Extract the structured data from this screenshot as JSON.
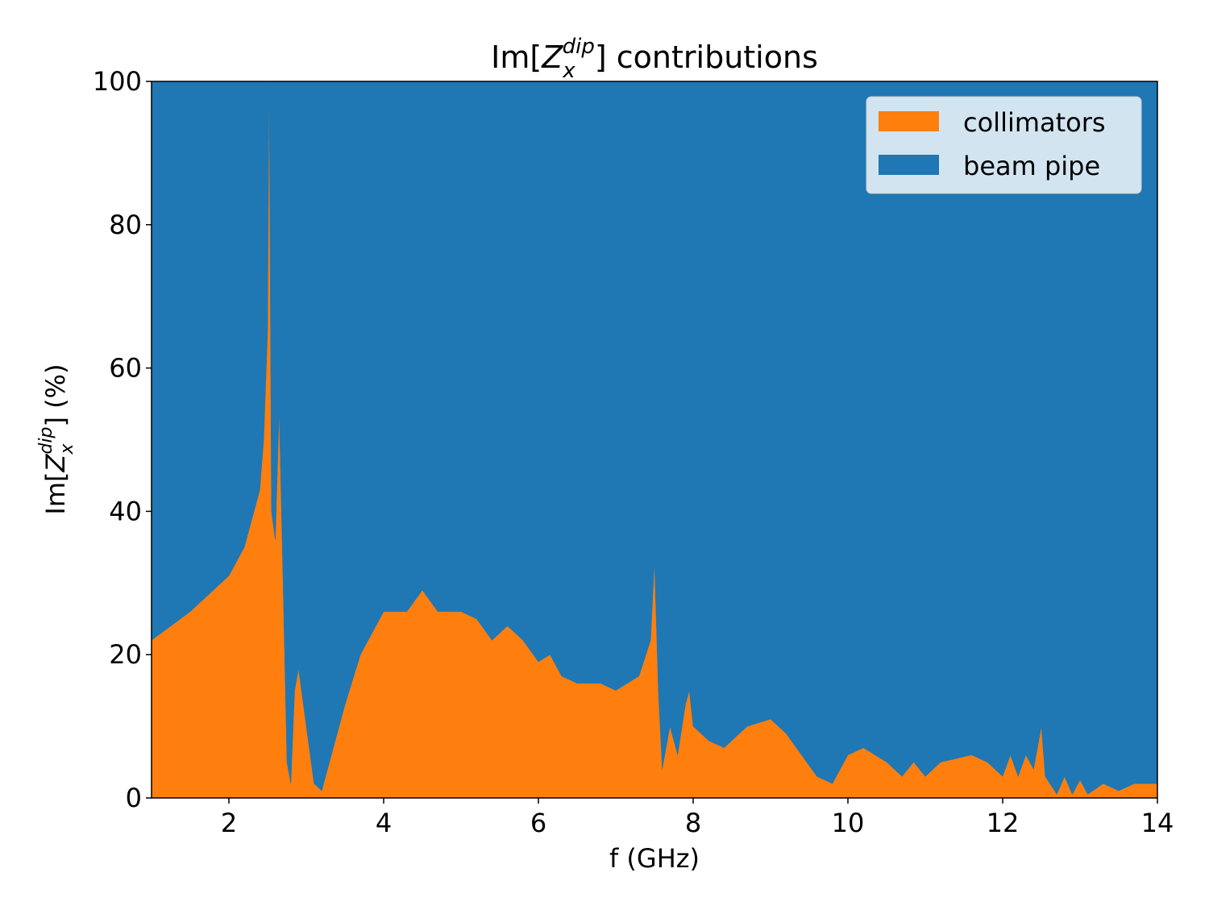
{
  "chart_data": {
    "type": "stacked-area",
    "title": {
      "prefix": "Im[",
      "symbol": "Z",
      "sub": "x",
      "sup": "dip",
      "suffix": "] contributions"
    },
    "x_label": "f (GHz)",
    "y_label": {
      "prefix": "Im[",
      "symbol": "Z",
      "sub": "x",
      "sup": "dip",
      "suffix": "] (%)"
    },
    "x": [
      1.0,
      1.5,
      2.0,
      2.2,
      2.4,
      2.45,
      2.5,
      2.52,
      2.55,
      2.6,
      2.65,
      2.7,
      2.75,
      2.8,
      2.85,
      2.9,
      3.0,
      3.1,
      3.2,
      3.3,
      3.5,
      3.7,
      4.0,
      4.3,
      4.5,
      4.7,
      5.0,
      5.2,
      5.4,
      5.6,
      5.8,
      6.0,
      6.15,
      6.3,
      6.5,
      6.8,
      7.0,
      7.3,
      7.45,
      7.5,
      7.55,
      7.6,
      7.7,
      7.8,
      7.9,
      7.95,
      8.0,
      8.2,
      8.4,
      8.7,
      9.0,
      9.2,
      9.4,
      9.6,
      9.8,
      10.0,
      10.2,
      10.5,
      10.7,
      10.85,
      11.0,
      11.2,
      11.6,
      11.8,
      12.0,
      12.1,
      12.2,
      12.3,
      12.4,
      12.5,
      12.55,
      12.7,
      12.8,
      12.9,
      13.0,
      13.1,
      13.3,
      13.5,
      13.7,
      14.0
    ],
    "series": [
      {
        "name": "collimators",
        "color": "#ff7f0e",
        "values": [
          22,
          26,
          31,
          35,
          43,
          50,
          65,
          100,
          40,
          36,
          54,
          30,
          5,
          2,
          15,
          18,
          10,
          2,
          1,
          5,
          13,
          20,
          26,
          26,
          29,
          26,
          26,
          25,
          22,
          24,
          22,
          19,
          20,
          17,
          16,
          16,
          15,
          17,
          22,
          33,
          15,
          4,
          10,
          6,
          13,
          15,
          10,
          8,
          7,
          10,
          11,
          9,
          6,
          3,
          2,
          6,
          7,
          5,
          3,
          5,
          3,
          5,
          6,
          5,
          3,
          6,
          3,
          6,
          4,
          10,
          3,
          0.5,
          3,
          0.5,
          2.5,
          0.5,
          2,
          1,
          2,
          2
        ]
      },
      {
        "name": "beam pipe",
        "color": "#1f77b4",
        "values": [
          78,
          74,
          69,
          65,
          57,
          50,
          35,
          0,
          60,
          64,
          46,
          70,
          95,
          98,
          85,
          82,
          90,
          98,
          99,
          95,
          87,
          80,
          74,
          74,
          71,
          74,
          74,
          75,
          78,
          76,
          78,
          81,
          80,
          83,
          84,
          84,
          85,
          83,
          78,
          67,
          85,
          96,
          90,
          94,
          87,
          85,
          90,
          92,
          93,
          90,
          89,
          91,
          94,
          97,
          98,
          94,
          93,
          95,
          97,
          95,
          97,
          95,
          94,
          95,
          97,
          94,
          97,
          94,
          96,
          90,
          97,
          99.5,
          97,
          99.5,
          97.5,
          99.5,
          98,
          99,
          98,
          98
        ]
      }
    ],
    "xlim": [
      1,
      14
    ],
    "xticks": [
      2,
      4,
      6,
      8,
      10,
      12,
      14
    ],
    "ylim": [
      0,
      100
    ],
    "yticks": [
      0,
      20,
      40,
      60,
      80,
      100
    ],
    "legend": "upper right"
  }
}
